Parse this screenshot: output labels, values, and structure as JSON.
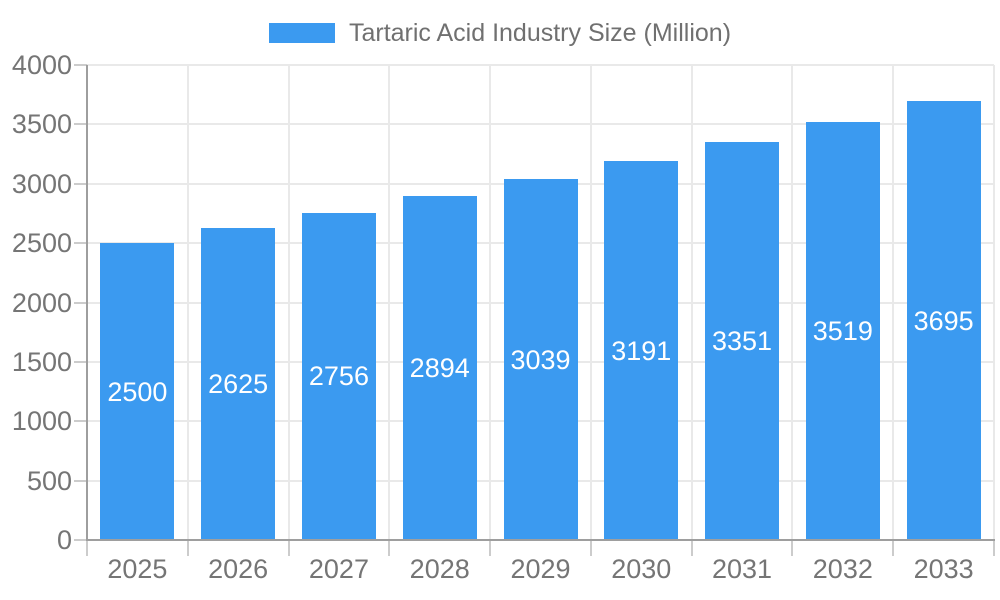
{
  "legend": {
    "label": "Tartaric Acid Industry Size (Million)"
  },
  "chart_data": {
    "type": "bar",
    "title": "Tartaric Acid Industry Size (Million)",
    "series_name": "Tartaric Acid Industry Size (Million)",
    "categories": [
      "2025",
      "2026",
      "2027",
      "2028",
      "2029",
      "2030",
      "2031",
      "2032",
      "2033"
    ],
    "values": [
      2500,
      2625,
      2756,
      2894,
      3039,
      3191,
      3351,
      3519,
      3695
    ],
    "bar_labels": [
      "2500",
      "2625",
      "2756",
      "2894",
      "3039",
      "3191",
      "3351",
      "3519",
      "3695"
    ],
    "xlabel": "",
    "ylabel": "",
    "ylim": [
      0,
      4000
    ],
    "y_ticks": [
      0,
      500,
      1000,
      1500,
      2000,
      2500,
      3000,
      3500,
      4000
    ],
    "grid": true,
    "legend_position": "top"
  },
  "colors": {
    "bar": "#3b9af0",
    "bar_label_text": "#ffffff",
    "grid_line": "#e9e9e9",
    "axis_line": "#9e9e9e",
    "tick_mark": "#cccccc",
    "tick_label_text": "#757575",
    "legend_text": "#707070",
    "background": "#ffffff"
  }
}
